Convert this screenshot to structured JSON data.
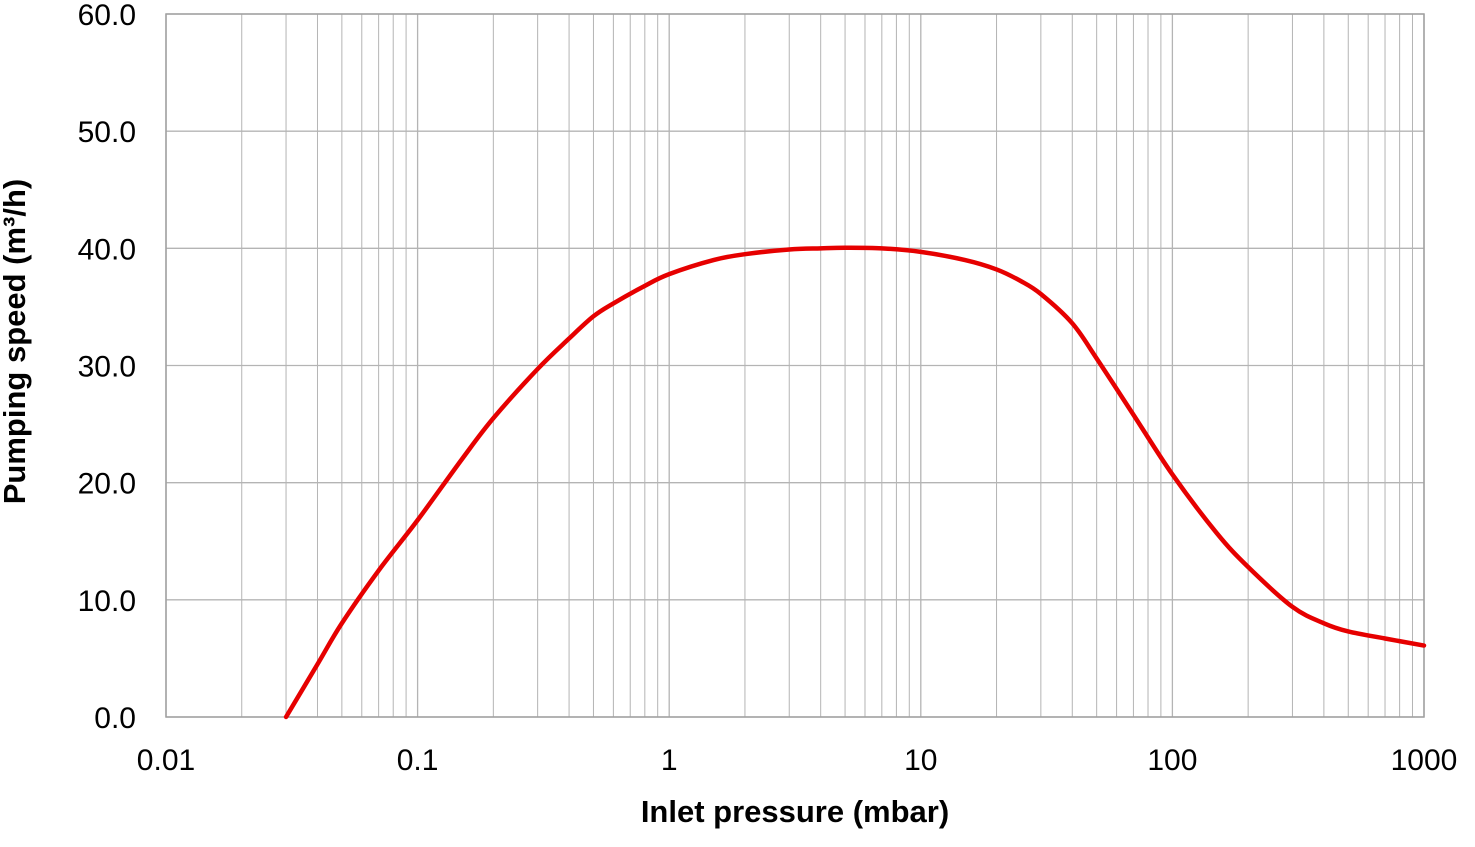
{
  "chart_data": {
    "type": "line",
    "title": "",
    "xlabel": "Inlet pressure (mbar)",
    "ylabel": "Pumping speed (m³/h)",
    "xscale": "log",
    "xlim": [
      0.01,
      1000
    ],
    "ylim": [
      0,
      60
    ],
    "x_ticks": [
      0.01,
      0.1,
      1,
      10,
      100,
      1000
    ],
    "x_tick_labels": [
      "0.01",
      "0.1",
      "1",
      "10",
      "100",
      "1000"
    ],
    "y_ticks": [
      0,
      10,
      20,
      30,
      40,
      50,
      60
    ],
    "y_tick_labels": [
      "0.0",
      "10.0",
      "20.0",
      "30.0",
      "40.0",
      "50.0",
      "60.0"
    ],
    "grid": true,
    "legend": "none",
    "colors": {
      "line": "#e60000",
      "grid": "#b4b4b4",
      "axis": "#a0a0a0"
    },
    "series": [
      {
        "x": [
          0.03,
          0.04,
          0.05,
          0.07,
          0.1,
          0.15,
          0.2,
          0.3,
          0.4,
          0.5,
          0.6,
          0.8,
          1,
          1.5,
          2,
          3,
          4,
          5,
          7,
          10,
          15,
          20,
          25,
          30,
          40,
          50,
          70,
          100,
          150,
          200,
          300,
          400,
          500,
          700,
          1000
        ],
        "y": [
          0,
          4.5,
          8,
          12.5,
          16.8,
          22,
          25.5,
          29.7,
          32.3,
          34.2,
          35.3,
          36.8,
          37.8,
          39,
          39.5,
          39.9,
          40,
          40.05,
          40,
          39.7,
          39,
          38.2,
          37.2,
          36.1,
          33.6,
          30.6,
          25.8,
          20.7,
          15.7,
          12.8,
          9.4,
          8,
          7.3,
          6.7,
          6.1
        ]
      }
    ]
  }
}
